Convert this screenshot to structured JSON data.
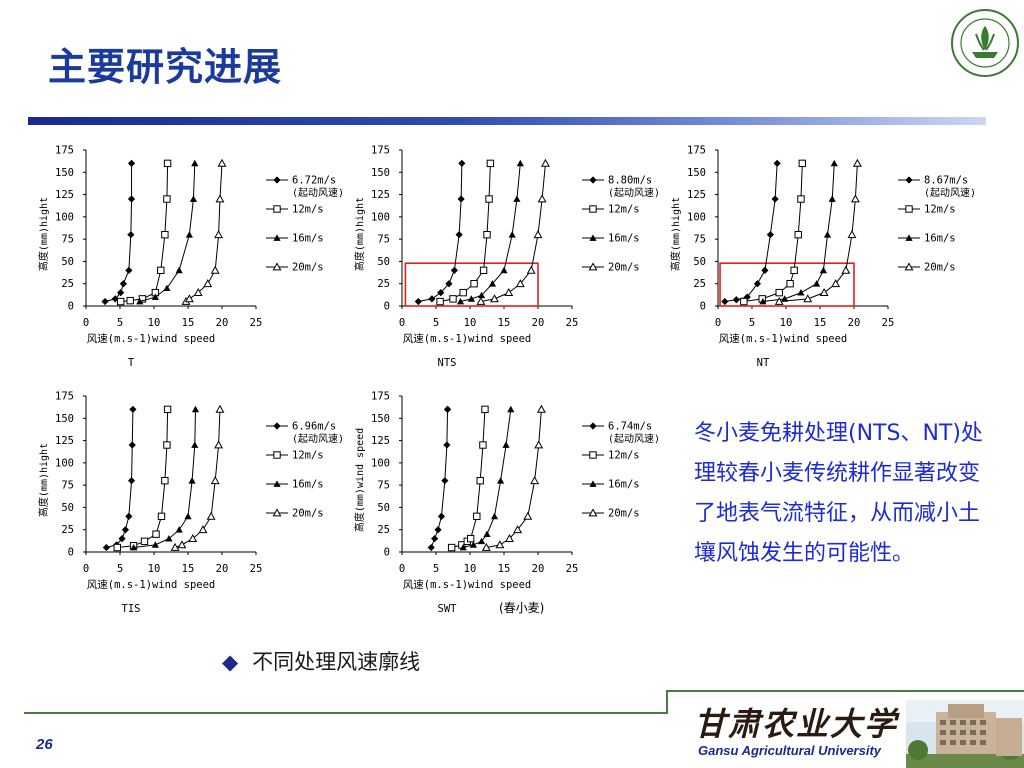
{
  "title": "主要研究进展",
  "description": "冬小麦免耕处理(NTS、NT)处理较春小麦传统耕作显著改变了地表气流特征，从而减小土壤风蚀发生的可能性。",
  "bullet": {
    "symbol": "◆",
    "text": "不同处理风速廓线"
  },
  "page_number": "26",
  "footer": {
    "university_en": "Gansu Agricultural University",
    "university_calligraphy": "甘肃农业大学"
  },
  "colors": {
    "title": "#1a3a9c",
    "description": "#1d2bd6",
    "bar": "#1a2a8c",
    "footer_line": "#4a7a40"
  },
  "chart_data": [
    {
      "type": "line",
      "name": "T",
      "xlabel": "风速(m.s-1)wind speed",
      "ylabel": "高度(mm)hight",
      "xlim": [
        0,
        25
      ],
      "ylim": [
        0,
        175
      ],
      "xticks": [
        0,
        5,
        10,
        15,
        20,
        25
      ],
      "yticks": [
        0,
        25,
        50,
        75,
        100,
        125,
        150,
        175
      ],
      "caption": "T",
      "highlight": null,
      "series": [
        {
          "name": "6.72m/s",
          "note": "(起动风速)",
          "marker": "diamond",
          "x": [
            2.8,
            4.3,
            5.1,
            5.5,
            6.3,
            6.6,
            6.7,
            6.7
          ],
          "y": [
            5,
            8,
            15,
            25,
            40,
            80,
            120,
            160
          ]
        },
        {
          "name": "12m/s",
          "marker": "square",
          "x": [
            5.1,
            6.5,
            8.3,
            10.2,
            11.0,
            11.6,
            11.9,
            12.0
          ],
          "y": [
            5,
            6,
            8,
            15,
            40,
            80,
            120,
            160
          ]
        },
        {
          "name": "16m/s",
          "marker": "triangle",
          "x": [
            7.9,
            10.2,
            11.9,
            13.7,
            15.2,
            15.8,
            16.0
          ],
          "y": [
            5,
            10,
            20,
            40,
            80,
            120,
            160
          ]
        },
        {
          "name": "20m/s",
          "marker": "triangle-open",
          "x": [
            14.7,
            15.2,
            16.5,
            17.9,
            19.0,
            19.5,
            19.7,
            20.0
          ],
          "y": [
            5,
            8,
            15,
            25,
            40,
            80,
            120,
            160
          ]
        }
      ]
    },
    {
      "type": "line",
      "name": "NTS",
      "xlabel": "风速(m.s-1)wind speed",
      "ylabel": "高度(mm)hight",
      "xlim": [
        0,
        25
      ],
      "ylim": [
        0,
        175
      ],
      "xticks": [
        0,
        5,
        10,
        15,
        20,
        25
      ],
      "yticks": [
        0,
        25,
        50,
        75,
        100,
        125,
        150,
        175
      ],
      "caption": "NTS",
      "highlight": {
        "x": [
          0.5,
          20
        ],
        "y": [
          0,
          48
        ]
      },
      "series": [
        {
          "name": "8.80m/s",
          "note": "(起动风速)",
          "marker": "diamond",
          "x": [
            2.4,
            4.4,
            5.7,
            6.9,
            7.7,
            8.4,
            8.7,
            8.8
          ],
          "y": [
            5,
            8,
            15,
            25,
            40,
            80,
            120,
            160
          ]
        },
        {
          "name": "12m/s",
          "marker": "square",
          "x": [
            5.6,
            7.5,
            9.0,
            10.6,
            12.0,
            12.5,
            12.8,
            13.0
          ],
          "y": [
            5,
            8,
            15,
            25,
            40,
            80,
            120,
            160
          ]
        },
        {
          "name": "16m/s",
          "marker": "triangle",
          "x": [
            8.6,
            10.2,
            11.7,
            13.3,
            15.0,
            16.2,
            16.9,
            17.4
          ],
          "y": [
            5,
            8,
            12,
            25,
            40,
            80,
            120,
            160
          ]
        },
        {
          "name": "20m/s",
          "marker": "triangle-open",
          "x": [
            11.6,
            13.6,
            15.7,
            17.4,
            19.0,
            20.0,
            20.6,
            21.1
          ],
          "y": [
            5,
            8,
            15,
            25,
            40,
            80,
            120,
            160
          ]
        }
      ]
    },
    {
      "type": "line",
      "name": "NT",
      "xlabel": "风速(m.s-1)wind speed",
      "ylabel": "高度(mm)hight",
      "xlim": [
        0,
        25
      ],
      "ylim": [
        0,
        175
      ],
      "xticks": [
        0,
        5,
        10,
        15,
        20,
        25
      ],
      "yticks": [
        0,
        25,
        50,
        75,
        100,
        125,
        150,
        175
      ],
      "caption": "NT",
      "highlight": {
        "x": [
          0.3,
          20
        ],
        "y": [
          0,
          48
        ]
      },
      "series": [
        {
          "name": "8.67m/s",
          "note": "(起动风速)",
          "marker": "diamond",
          "x": [
            1.0,
            2.7,
            4.3,
            5.8,
            6.9,
            7.7,
            8.4,
            8.7
          ],
          "y": [
            5,
            7,
            10,
            25,
            40,
            80,
            120,
            160
          ]
        },
        {
          "name": "12m/s",
          "marker": "square",
          "x": [
            3.8,
            6.5,
            9.0,
            10.6,
            11.2,
            11.8,
            12.2,
            12.4
          ],
          "y": [
            5,
            8,
            15,
            25,
            40,
            80,
            120,
            160
          ]
        },
        {
          "name": "16m/s",
          "marker": "triangle",
          "x": [
            6.6,
            9.8,
            12.2,
            14.5,
            15.5,
            16.1,
            16.8,
            17.1
          ],
          "y": [
            5,
            8,
            15,
            25,
            40,
            80,
            120,
            160
          ]
        },
        {
          "name": "20m/s",
          "marker": "triangle-open",
          "x": [
            9.0,
            13.2,
            15.6,
            17.3,
            18.8,
            19.7,
            20.2,
            20.5
          ],
          "y": [
            5,
            8,
            15,
            25,
            40,
            80,
            120,
            160
          ]
        }
      ]
    },
    {
      "type": "line",
      "name": "TIS",
      "xlabel": "风速(m.s-1)wind speed",
      "ylabel": "高度(mm)hight",
      "xlim": [
        0,
        25
      ],
      "ylim": [
        0,
        175
      ],
      "xticks": [
        0,
        5,
        10,
        15,
        20,
        25
      ],
      "yticks": [
        0,
        25,
        50,
        75,
        100,
        125,
        150,
        175
      ],
      "caption": "TIS",
      "highlight": null,
      "series": [
        {
          "name": "6.96m/s",
          "note": "(起动风速)",
          "marker": "diamond",
          "x": [
            3.0,
            4.5,
            5.3,
            5.8,
            6.3,
            6.7,
            6.8,
            6.9
          ],
          "y": [
            5,
            8,
            15,
            25,
            40,
            80,
            120,
            160
          ]
        },
        {
          "name": "12m/s",
          "marker": "square",
          "x": [
            4.6,
            7.0,
            8.6,
            10.3,
            11.1,
            11.6,
            11.9,
            12.0
          ],
          "y": [
            5,
            7,
            12,
            20,
            40,
            80,
            120,
            160
          ]
        },
        {
          "name": "16m/s",
          "marker": "triangle",
          "x": [
            7.0,
            10.2,
            12.2,
            13.7,
            15.0,
            15.6,
            16.0,
            16.1
          ],
          "y": [
            5,
            8,
            15,
            25,
            40,
            80,
            120,
            160
          ]
        },
        {
          "name": "20m/s",
          "marker": "triangle-open",
          "x": [
            13.1,
            14.1,
            15.7,
            17.2,
            18.4,
            19.0,
            19.5,
            19.7
          ],
          "y": [
            5,
            8,
            15,
            25,
            40,
            80,
            120,
            160
          ]
        }
      ]
    },
    {
      "type": "line",
      "name": "SWT",
      "xlabel": "风速(m.s-1)wind speed",
      "ylabel": "高度(mm)wind speed",
      "xlim": [
        0,
        25
      ],
      "ylim": [
        0,
        175
      ],
      "xticks": [
        0,
        5,
        10,
        15,
        20,
        25
      ],
      "yticks": [
        0,
        25,
        50,
        75,
        100,
        125,
        150,
        175
      ],
      "caption": "SWT",
      "caption_note": "(春小麦)",
      "highlight": null,
      "series": [
        {
          "name": "6.74m/s",
          "note": "(起动风速)",
          "marker": "diamond",
          "x": [
            4.3,
            4.8,
            5.3,
            5.8,
            6.3,
            6.6,
            6.7,
            6.7
          ],
          "y": [
            5,
            15,
            25,
            40,
            80,
            120,
            160,
            160
          ]
        },
        {
          "name": "12m/s",
          "marker": "square",
          "x": [
            7.3,
            8.8,
            9.6,
            10.1,
            11.0,
            11.5,
            11.9,
            12.2
          ],
          "y": [
            5,
            8,
            12,
            15,
            40,
            80,
            120,
            160
          ]
        },
        {
          "name": "16m/s",
          "marker": "triangle",
          "x": [
            9.0,
            10.5,
            11.7,
            12.5,
            13.6,
            14.5,
            15.3,
            16.0
          ],
          "y": [
            5,
            8,
            12,
            20,
            40,
            80,
            120,
            160
          ]
        },
        {
          "name": "20m/s",
          "marker": "triangle-open",
          "x": [
            12.4,
            14.4,
            15.8,
            17.0,
            18.5,
            19.5,
            20.1,
            20.5
          ],
          "y": [
            5,
            8,
            15,
            25,
            40,
            80,
            120,
            160
          ]
        }
      ]
    }
  ]
}
